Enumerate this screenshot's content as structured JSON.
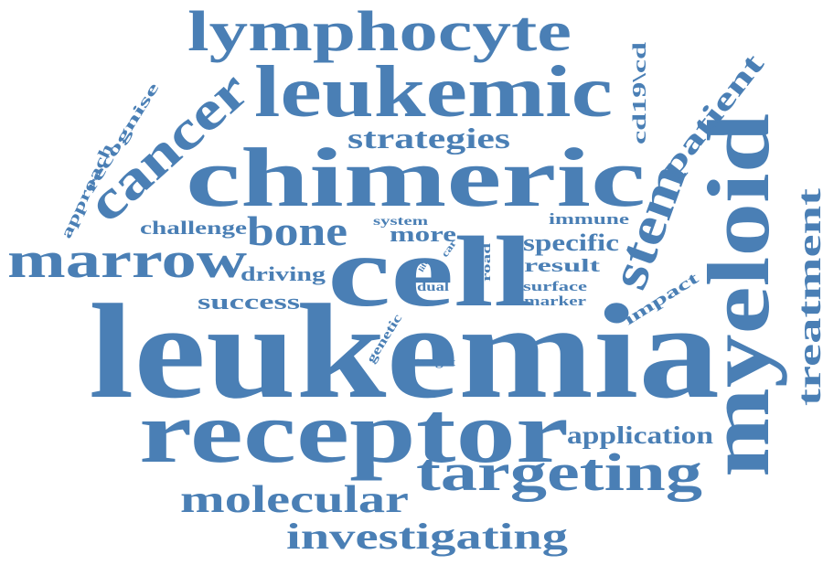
{
  "word_color": "#4a7fb5",
  "words": {
    "leukemia": "leukemia",
    "receptor": "receptor",
    "chimeric": "chimeric",
    "cell": "cell",
    "leukemic": "leukemic",
    "myeloid": "myeloid",
    "lymphocyte": "lymphocyte",
    "targeting": "targeting",
    "marrow": "marrow",
    "cancer": "cancer",
    "investigating": "investigating",
    "molecular": "molecular",
    "stem": "stem",
    "bone": "bone",
    "treatment": "treatment",
    "patient": "patient",
    "strategies": "strategies",
    "application": "application",
    "cd19cd": "cd19\\cd",
    "challenge": "challenge",
    "success": "success",
    "specific": "specific",
    "more": "more",
    "result": "result",
    "driving": "driving",
    "recognise": "recognise",
    "approach": "approach",
    "immune": "immune",
    "impact": "impact",
    "surface": "surface",
    "marker": "marker",
    "system": "system",
    "genetic": "genetic",
    "dual": "dual",
    "road": "road",
    "target": "target",
    "car": "car",
    "life": "life"
  }
}
